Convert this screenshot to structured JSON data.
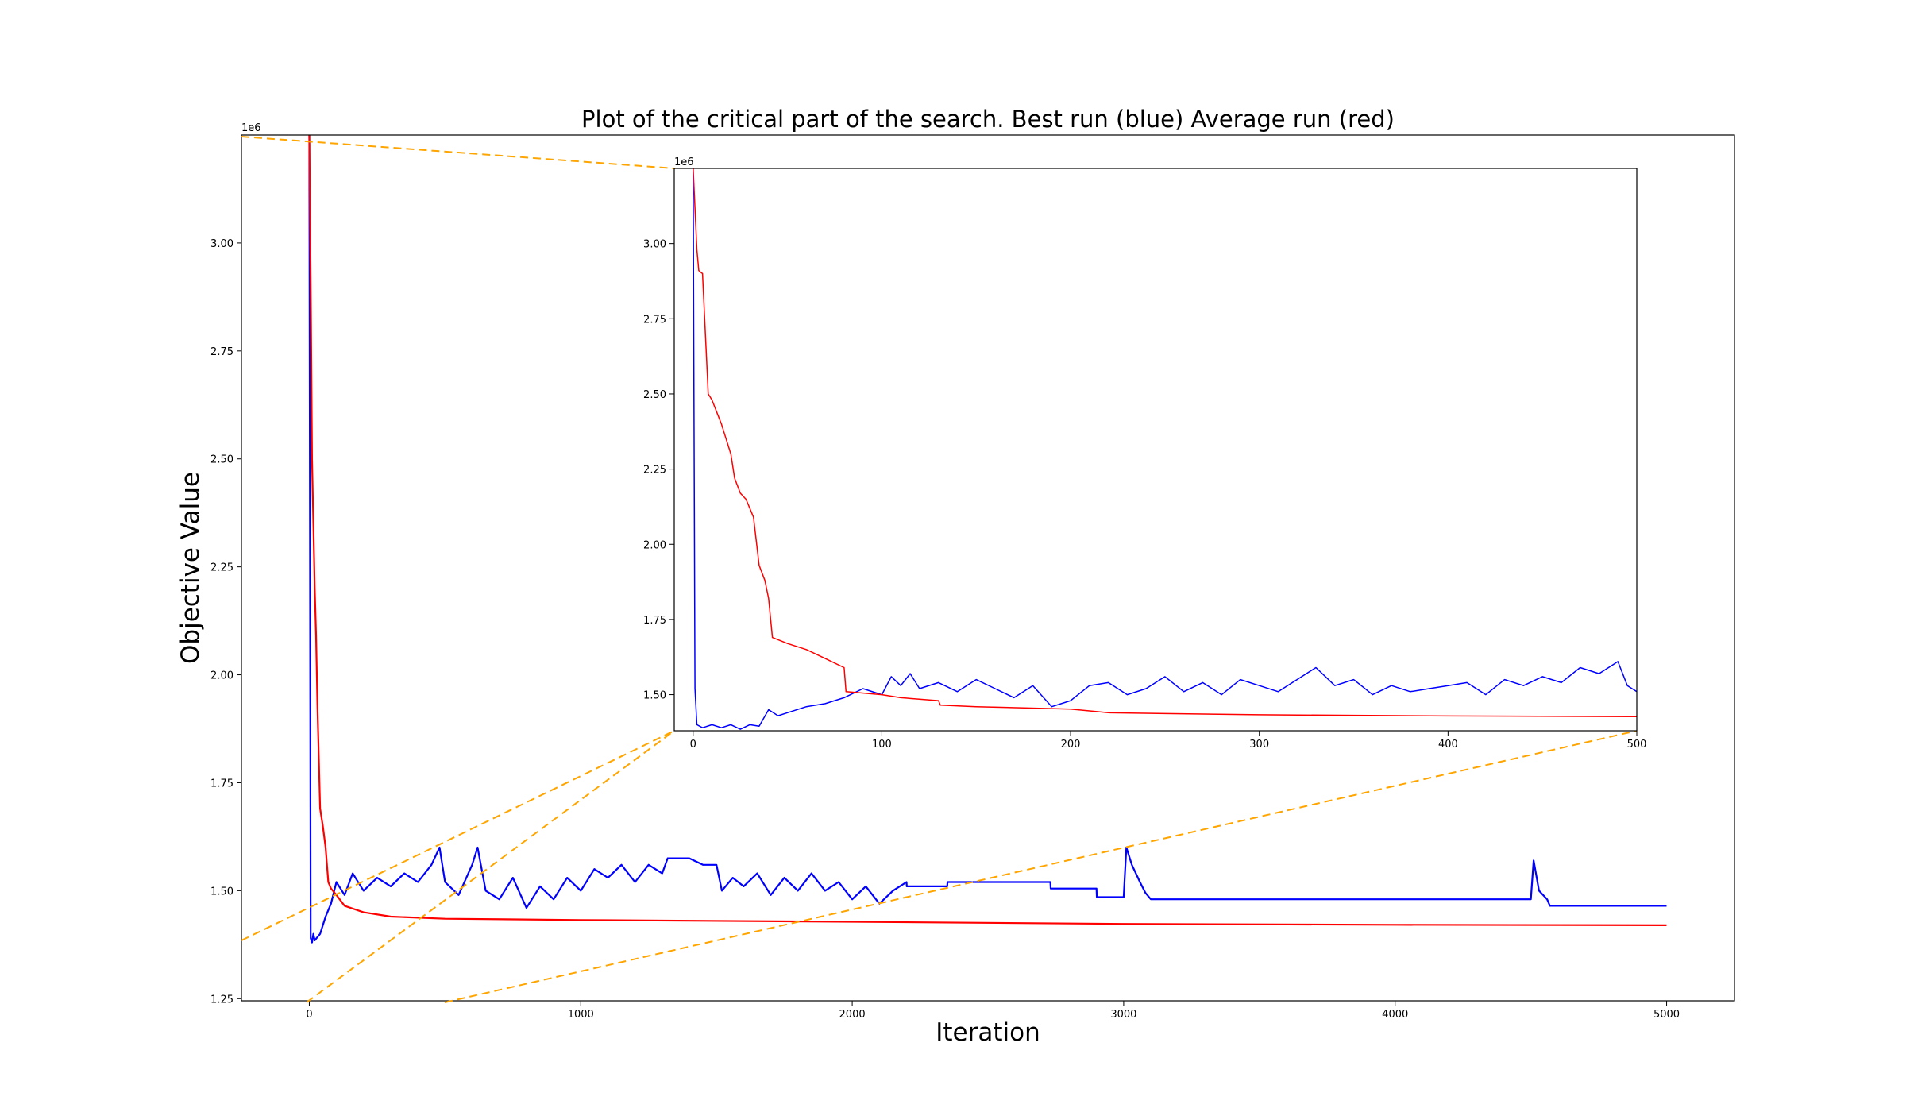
{
  "chart_data": [
    {
      "type": "line",
      "role": "main",
      "title": "Plot of the critical part of  the search. Best run (blue) Average run (red)",
      "xlabel": "Iteration",
      "ylabel": "Objective Value",
      "y_offset_label": "1e6",
      "xlim": [
        -250,
        5250
      ],
      "ylim": [
        1245000,
        3250000
      ],
      "x_ticks": [
        0,
        1000,
        2000,
        3000,
        4000,
        5000
      ],
      "x_tick_labels": [
        "0",
        "1000",
        "2000",
        "3000",
        "4000",
        "5000"
      ],
      "y_ticks": [
        1250000,
        1500000,
        1750000,
        2000000,
        2250000,
        2500000,
        2750000,
        3000000
      ],
      "y_tick_labels": [
        "1.25",
        "1.50",
        "1.75",
        "2.00",
        "2.25",
        "2.50",
        "2.75",
        "3.00"
      ],
      "grid": false,
      "series": [
        {
          "name": "Best run",
          "color": "#0000ff",
          "x": [
            0,
            5,
            10,
            15,
            20,
            40,
            60,
            80,
            100,
            130,
            160,
            200,
            250,
            300,
            350,
            400,
            450,
            480,
            500,
            550,
            600,
            620,
            650,
            700,
            750,
            800,
            850,
            900,
            950,
            1000,
            1050,
            1100,
            1150,
            1200,
            1250,
            1300,
            1320,
            1400,
            1450,
            1500,
            1520,
            1560,
            1600,
            1650,
            1700,
            1750,
            1800,
            1850,
            1900,
            1950,
            2000,
            2050,
            2100,
            2150,
            2200,
            2201,
            2350,
            2351,
            2730,
            2731,
            2900,
            2901,
            3000,
            3010,
            3030,
            3060,
            3080,
            3100,
            4500,
            4510,
            4530,
            4560,
            4570,
            5000
          ],
          "y": [
            3250000,
            1390000,
            1380000,
            1400000,
            1385000,
            1400000,
            1440000,
            1470000,
            1520000,
            1490000,
            1540000,
            1500000,
            1530000,
            1510000,
            1540000,
            1520000,
            1560000,
            1600000,
            1520000,
            1490000,
            1560000,
            1600000,
            1500000,
            1480000,
            1530000,
            1460000,
            1510000,
            1480000,
            1530000,
            1500000,
            1550000,
            1530000,
            1560000,
            1520000,
            1560000,
            1540000,
            1575000,
            1575000,
            1560000,
            1560000,
            1500000,
            1530000,
            1510000,
            1540000,
            1490000,
            1530000,
            1500000,
            1540000,
            1500000,
            1520000,
            1480000,
            1510000,
            1470000,
            1500000,
            1520000,
            1510000,
            1510000,
            1520000,
            1520000,
            1505000,
            1505000,
            1485000,
            1485000,
            1600000,
            1560000,
            1520000,
            1495000,
            1480000,
            1480000,
            1570000,
            1500000,
            1480000,
            1465000,
            1465000
          ]
        },
        {
          "name": "Average run",
          "color": "#ff0000",
          "x": [
            0,
            5,
            10,
            20,
            25,
            30,
            40,
            50,
            60,
            70,
            80,
            100,
            130,
            200,
            300,
            500,
            1000,
            2000,
            3000,
            4000,
            5000
          ],
          "y": [
            3250000,
            2910000,
            2500000,
            2200000,
            2090000,
            1930000,
            1690000,
            1650000,
            1600000,
            1520000,
            1505000,
            1490000,
            1465000,
            1450000,
            1440000,
            1435000,
            1432000,
            1428000,
            1423000,
            1421000,
            1420000
          ]
        }
      ]
    },
    {
      "type": "line",
      "role": "inset",
      "title": "",
      "xlabel": "",
      "ylabel": "",
      "y_offset_label": "1e6",
      "xlim": [
        -10,
        500
      ],
      "ylim": [
        1380000,
        3250000
      ],
      "x_ticks": [
        0,
        100,
        200,
        300,
        400,
        500
      ],
      "x_tick_labels": [
        "0",
        "100",
        "200",
        "300",
        "400",
        "500"
      ],
      "y_ticks": [
        1500000,
        1750000,
        2000000,
        2250000,
        2500000,
        2750000,
        3000000
      ],
      "y_tick_labels": [
        "1.50",
        "1.75",
        "2.00",
        "2.25",
        "2.50",
        "2.75",
        "3.00"
      ],
      "grid": false,
      "series": [
        {
          "name": "Best run",
          "color": "#0000ff",
          "x": [
            0,
            1,
            2,
            5,
            10,
            15,
            20,
            25,
            30,
            35,
            40,
            45,
            50,
            60,
            70,
            80,
            90,
            100,
            105,
            110,
            115,
            120,
            130,
            140,
            150,
            160,
            170,
            180,
            190,
            200,
            210,
            220,
            230,
            240,
            250,
            260,
            270,
            280,
            290,
            300,
            310,
            320,
            330,
            340,
            350,
            360,
            370,
            380,
            390,
            400,
            410,
            420,
            430,
            440,
            450,
            460,
            470,
            480,
            490,
            495,
            500
          ],
          "y": [
            3250000,
            1520000,
            1400000,
            1390000,
            1400000,
            1390000,
            1400000,
            1385000,
            1400000,
            1395000,
            1450000,
            1430000,
            1440000,
            1460000,
            1470000,
            1490000,
            1520000,
            1500000,
            1560000,
            1530000,
            1570000,
            1520000,
            1540000,
            1510000,
            1550000,
            1520000,
            1490000,
            1530000,
            1460000,
            1480000,
            1530000,
            1540000,
            1500000,
            1520000,
            1560000,
            1510000,
            1540000,
            1500000,
            1550000,
            1530000,
            1510000,
            1550000,
            1590000,
            1530000,
            1550000,
            1500000,
            1530000,
            1510000,
            1520000,
            1530000,
            1540000,
            1500000,
            1550000,
            1530000,
            1560000,
            1540000,
            1590000,
            1570000,
            1610000,
            1530000,
            1510000
          ]
        },
        {
          "name": "Average run",
          "color": "#ff0000",
          "x": [
            0,
            2,
            3,
            5,
            8,
            10,
            15,
            20,
            22,
            25,
            28,
            30,
            32,
            35,
            38,
            40,
            42,
            50,
            60,
            70,
            80,
            81,
            100,
            110,
            130,
            131,
            150,
            200,
            220,
            250,
            300,
            400,
            500
          ],
          "y": [
            3250000,
            2980000,
            2910000,
            2900000,
            2500000,
            2480000,
            2400000,
            2300000,
            2220000,
            2170000,
            2150000,
            2120000,
            2090000,
            1930000,
            1880000,
            1820000,
            1690000,
            1670000,
            1650000,
            1620000,
            1590000,
            1510000,
            1500000,
            1490000,
            1480000,
            1465000,
            1460000,
            1452000,
            1440000,
            1437000,
            1433000,
            1429000,
            1427000
          ]
        }
      ]
    }
  ],
  "colors": {
    "best": "#0000ff",
    "average": "#ff0000",
    "connector": "#ffa500"
  }
}
